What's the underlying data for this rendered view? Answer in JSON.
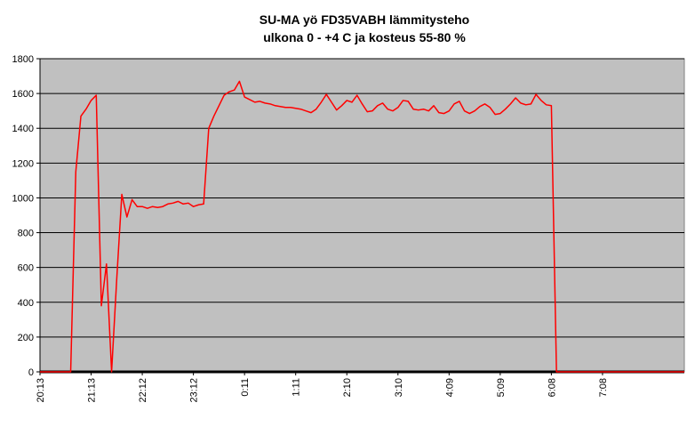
{
  "chart_data": {
    "type": "line",
    "title": "SU-MA yö FD35VABH lämmitysteho",
    "subtitle": "ulkona 0 - +4 C ja kosteus 55-80 %",
    "categories": [
      "20:13",
      null,
      null,
      null,
      null,
      null,
      null,
      null,
      null,
      null,
      "21:13",
      null,
      null,
      null,
      null,
      null,
      null,
      null,
      null,
      null,
      "22:12",
      null,
      null,
      null,
      null,
      null,
      null,
      null,
      null,
      null,
      "23:12",
      null,
      null,
      null,
      null,
      null,
      null,
      null,
      null,
      null,
      "0:11",
      null,
      null,
      null,
      null,
      null,
      null,
      null,
      null,
      null,
      "1:11",
      null,
      null,
      null,
      null,
      null,
      null,
      null,
      null,
      null,
      "2:10",
      null,
      null,
      null,
      null,
      null,
      null,
      null,
      null,
      null,
      "3:10",
      null,
      null,
      null,
      null,
      null,
      null,
      null,
      null,
      null,
      "4:09",
      null,
      null,
      null,
      null,
      null,
      null,
      null,
      null,
      null,
      "5:09",
      null,
      null,
      null,
      null,
      null,
      null,
      null,
      null,
      null,
      "6:08",
      null,
      null,
      null,
      null,
      null,
      null,
      null,
      null,
      null,
      "7:08",
      null,
      null,
      null,
      null,
      null,
      null,
      null,
      null,
      null,
      null,
      null,
      null,
      null,
      null,
      null,
      null
    ],
    "series": [
      {
        "color": "#ff0000",
        "values": [
          0,
          0,
          0,
          0,
          0,
          0,
          0,
          1150,
          1470,
          1510,
          1560,
          1590,
          380,
          620,
          0,
          530,
          1020,
          890,
          990,
          950,
          950,
          940,
          950,
          945,
          950,
          965,
          970,
          980,
          965,
          970,
          950,
          960,
          965,
          1400,
          1470,
          1530,
          1590,
          1610,
          1620,
          1670,
          1580,
          1565,
          1550,
          1555,
          1545,
          1540,
          1530,
          1525,
          1520,
          1520,
          1515,
          1510,
          1500,
          1490,
          1510,
          1550,
          1595,
          1550,
          1505,
          1530,
          1560,
          1550,
          1590,
          1540,
          1495,
          1500,
          1530,
          1545,
          1510,
          1500,
          1520,
          1560,
          1555,
          1510,
          1505,
          1510,
          1500,
          1530,
          1490,
          1485,
          1500,
          1540,
          1555,
          1500,
          1485,
          1500,
          1525,
          1540,
          1520,
          1480,
          1485,
          1510,
          1540,
          1575,
          1545,
          1535,
          1540,
          1595,
          1560,
          1535,
          1530,
          0,
          0,
          0,
          0,
          0,
          0,
          0,
          0,
          0,
          0,
          0,
          0,
          0,
          0,
          0,
          0,
          0,
          0,
          0,
          0,
          0,
          0,
          0,
          0,
          0,
          0
        ]
      }
    ],
    "ylim": [
      0,
      1800
    ],
    "yticks": [
      0,
      200,
      400,
      600,
      800,
      1000,
      1200,
      1400,
      1600,
      1800
    ],
    "grid": true,
    "plot_background": "#c0c0c0"
  }
}
